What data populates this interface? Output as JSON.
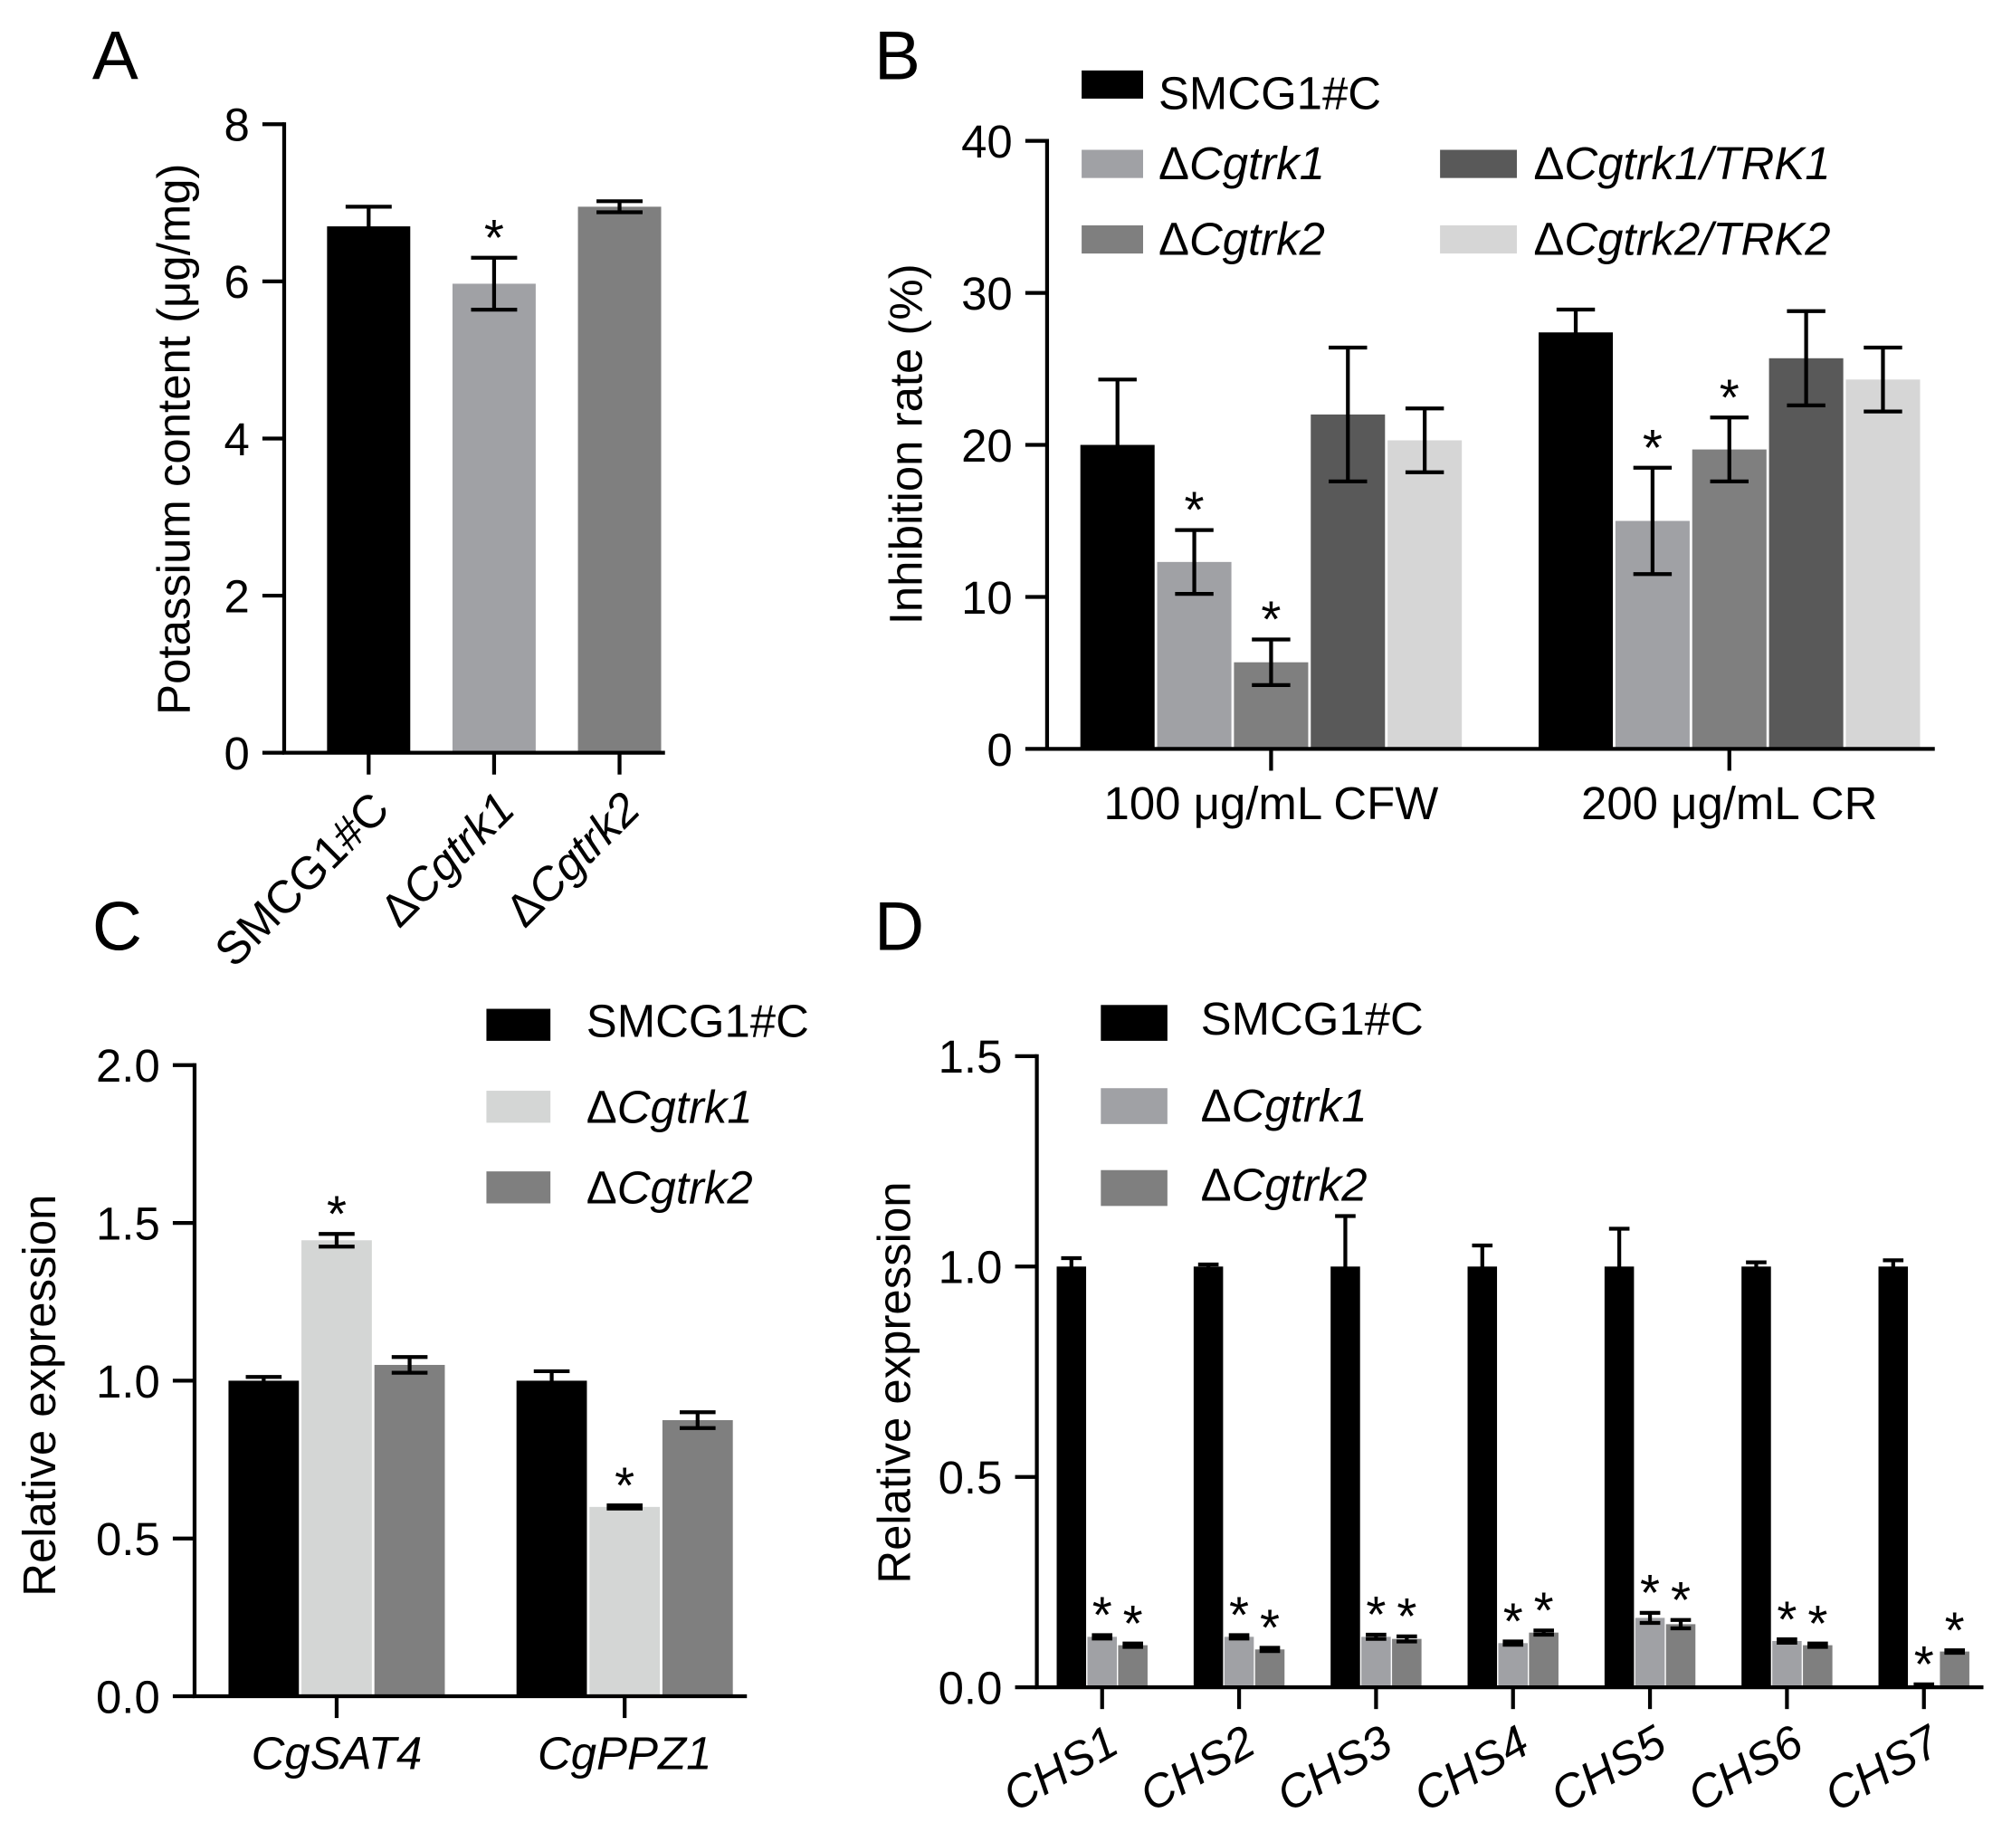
{
  "chart_data": [
    {
      "panel": "A",
      "type": "bar",
      "ylabel": "Potassium content (μg/mg)",
      "ylim": [
        0,
        8
      ],
      "yticks": [
        0,
        2,
        4,
        6,
        8
      ],
      "ytick_decimals": 0,
      "categories": [
        "SMCG1#C",
        "ΔCgtrk1",
        "ΔCgtrk2"
      ],
      "values": [
        6.7,
        5.97,
        6.95
      ],
      "errors": [
        0.25,
        0.33,
        0.07
      ],
      "significant": [
        false,
        true,
        false
      ],
      "colors": [
        "#000000",
        "#a0a1a5",
        "#7f7f7f"
      ],
      "significance_marker": "*"
    },
    {
      "panel": "B",
      "type": "bar",
      "ylabel": "Inhibition rate (%)",
      "ylim": [
        0,
        40
      ],
      "yticks": [
        0,
        10,
        20,
        30,
        40
      ],
      "ytick_decimals": 0,
      "categories": [
        "100 μg/mL CFW",
        "200 μg/mL CR"
      ],
      "series": [
        {
          "name": "SMCG1#C",
          "color": "#000000",
          "values": [
            20.0,
            27.4
          ],
          "errors": [
            4.3,
            1.5
          ],
          "significant": [
            false,
            false
          ]
        },
        {
          "name": "ΔCgtrk1",
          "color": "#a0a1a5",
          "values": [
            12.3,
            15.0
          ],
          "errors": [
            2.1,
            3.5
          ],
          "significant": [
            true,
            true
          ]
        },
        {
          "name": "ΔCgtrk2",
          "color": "#7f7f7f",
          "values": [
            5.7,
            19.7
          ],
          "errors": [
            1.5,
            2.1
          ],
          "significant": [
            true,
            true
          ]
        },
        {
          "name": "ΔCgtrk1/TRK1",
          "color": "#595959",
          "values": [
            22.0,
            25.7
          ],
          "errors": [
            4.4,
            3.1
          ],
          "significant": [
            false,
            false
          ]
        },
        {
          "name": "ΔCgtrk2/TRK2",
          "color": "#d6d6d6",
          "values": [
            20.3,
            24.3
          ],
          "errors": [
            2.1,
            2.1
          ],
          "significant": [
            false,
            false
          ]
        }
      ],
      "significance_marker": "*"
    },
    {
      "panel": "C",
      "type": "bar",
      "ylabel": "Relative expression",
      "ylim": [
        0,
        2
      ],
      "yticks": [
        0,
        0.5,
        1.0,
        1.5,
        2.0
      ],
      "ytick_decimals": 1,
      "categories": [
        "CgSAT4",
        "CgPPZ1"
      ],
      "series": [
        {
          "name": "SMCG1#C",
          "color": "#000000",
          "values": [
            1.0,
            1.0
          ],
          "errors": [
            0.012,
            0.03
          ],
          "significant": [
            false,
            false
          ]
        },
        {
          "name": "ΔCgtrk1",
          "color": "#d4d6d5",
          "values": [
            1.445,
            0.6
          ],
          "errors": [
            0.02,
            0.005
          ],
          "significant": [
            true,
            true
          ]
        },
        {
          "name": "ΔCgtrk2",
          "color": "#7f7f7f",
          "values": [
            1.05,
            0.875
          ],
          "errors": [
            0.025,
            0.025
          ],
          "significant": [
            false,
            false
          ]
        }
      ],
      "significance_marker": "*"
    },
    {
      "panel": "D",
      "type": "bar",
      "ylabel": "Relative expression",
      "ylim": [
        0,
        1.5
      ],
      "yticks": [
        0,
        0.5,
        1.0,
        1.5
      ],
      "ytick_decimals": 1,
      "categories": [
        "CHS1",
        "CHS2",
        "CHS3",
        "CHS4",
        "CHS5",
        "CHS6",
        "CHS7"
      ],
      "series": [
        {
          "name": "SMCG1#C",
          "color": "#000000",
          "values": [
            1.0,
            1.0,
            1.0,
            1.0,
            1.0,
            1.0,
            1.0
          ],
          "errors": [
            0.02,
            0.005,
            0.12,
            0.05,
            0.09,
            0.01,
            0.015
          ],
          "significant": [
            false,
            false,
            false,
            false,
            false,
            false,
            false
          ]
        },
        {
          "name": "ΔCgtrk1",
          "color": "#a0a1a5",
          "values": [
            0.12,
            0.12,
            0.12,
            0.105,
            0.165,
            0.11,
            0.005
          ],
          "errors": [
            0.004,
            0.004,
            0.005,
            0.004,
            0.012,
            0.004,
            0.002
          ],
          "significant": [
            true,
            true,
            true,
            true,
            true,
            true,
            true
          ]
        },
        {
          "name": "ΔCgtrk2",
          "color": "#7f7f7f",
          "values": [
            0.1,
            0.09,
            0.115,
            0.13,
            0.15,
            0.1,
            0.085
          ],
          "errors": [
            0.004,
            0.004,
            0.006,
            0.005,
            0.01,
            0.004,
            0.003
          ],
          "significant": [
            true,
            true,
            true,
            true,
            true,
            true,
            true
          ]
        }
      ],
      "significance_marker": "*"
    }
  ]
}
